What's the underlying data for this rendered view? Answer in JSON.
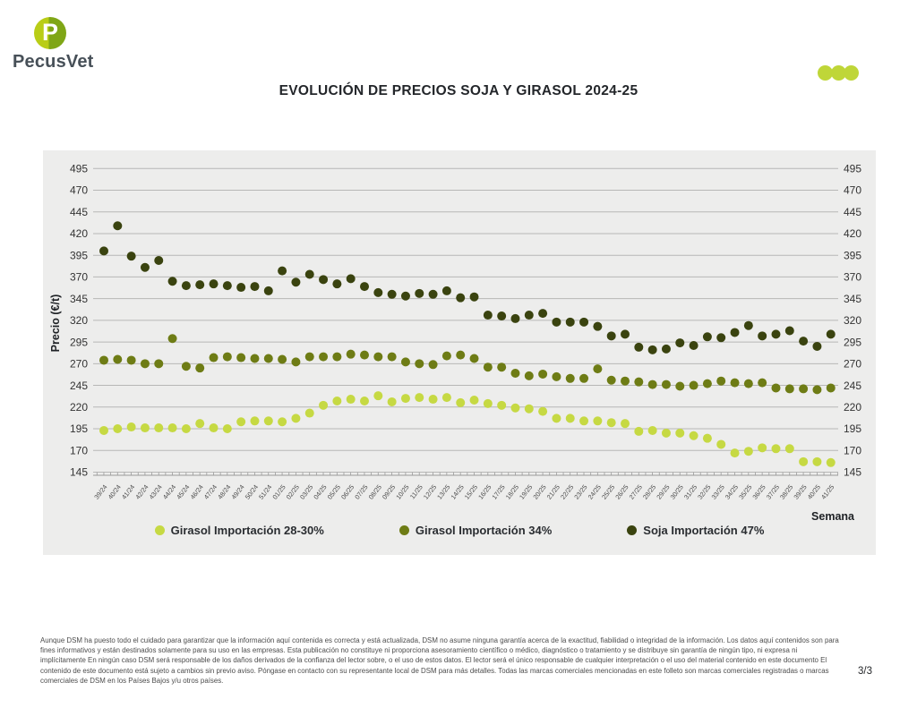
{
  "header": {
    "logo_text": "PecusVet",
    "logo_letter": "P",
    "title": "EVOLUCIÓN DE PRECIOS SOJA Y GIRASOL 2024-25"
  },
  "icons": {
    "logo": "pecusvet-circle-p-icon",
    "pager": "three-dots-icon"
  },
  "chart_data": {
    "type": "scatter",
    "title": "EVOLUCIÓN DE PRECIOS SOJA Y GIRASOL 2024-25",
    "xlabel": "Semana",
    "ylabel": "Precio (€/t)",
    "ylim": [
      145,
      495
    ],
    "ytick_step": 25,
    "grid": true,
    "legend_position": "bottom",
    "background": "#ededec",
    "x": [
      "39/24",
      "40/24",
      "41/24",
      "42/24",
      "43/24",
      "44/24",
      "45/24",
      "46/24",
      "47/24",
      "48/24",
      "49/24",
      "50/24",
      "51/24",
      "01/25",
      "02/25",
      "03/25",
      "04/25",
      "05/25",
      "06/25",
      "07/25",
      "08/25",
      "09/25",
      "10/25",
      "11/25",
      "12/25",
      "13/25",
      "14/25",
      "15/25",
      "16/25",
      "17/25",
      "18/25",
      "19/25",
      "20/25",
      "21/25",
      "22/25",
      "23/25",
      "24/25",
      "25/25",
      "26/25",
      "27/25",
      "28/25",
      "29/25",
      "30/25",
      "31/25",
      "32/25",
      "33/25",
      "34/25",
      "35/25",
      "36/25",
      "37/25",
      "38/25",
      "39/25",
      "40/25",
      "41/25"
    ],
    "series": [
      {
        "name": "Girasol Importación 28-30%",
        "color": "#c6d943",
        "values": [
          193,
          195,
          197,
          196,
          196,
          196,
          195,
          201,
          196,
          195,
          203,
          204,
          204,
          203,
          207,
          213,
          222,
          227,
          229,
          227,
          233,
          226,
          230,
          231,
          229,
          231,
          225,
          228,
          224,
          222,
          219,
          218,
          215,
          207,
          207,
          204,
          204,
          202,
          201,
          192,
          193,
          190,
          190,
          187,
          184,
          177,
          167,
          169,
          173,
          172,
          172,
          157,
          157,
          156
        ]
      },
      {
        "name": "Girasol Importación 34%",
        "color": "#6e7c15",
        "values": [
          274,
          275,
          274,
          270,
          270,
          299,
          267,
          265,
          277,
          278,
          277,
          276,
          276,
          275,
          272,
          278,
          278,
          278,
          281,
          280,
          278,
          278,
          272,
          270,
          269,
          279,
          280,
          276,
          266,
          266,
          259,
          256,
          258,
          255,
          253,
          253,
          264,
          251,
          250,
          249,
          246,
          246,
          244,
          245,
          247,
          250,
          248,
          247,
          248,
          242,
          241,
          241,
          240,
          242
        ]
      },
      {
        "name": "Soja Importación 47%",
        "color": "#3a430f",
        "values": [
          400,
          429,
          394,
          381,
          389,
          365,
          360,
          361,
          362,
          360,
          358,
          359,
          354,
          377,
          364,
          373,
          367,
          362,
          368,
          359,
          352,
          350,
          348,
          351,
          350,
          354,
          346,
          347,
          326,
          325,
          322,
          326,
          328,
          318,
          318,
          318,
          313,
          302,
          304,
          289,
          286,
          287,
          294,
          291,
          301,
          300,
          306,
          314,
          302,
          304,
          308,
          296,
          290,
          304
        ]
      }
    ]
  },
  "footer": {
    "disclaimer": "Aunque DSM ha puesto todo el cuidado para garantizar que la información aquí contenida es correcta y está actualizada, DSM no asume ninguna garantía acerca de la exactitud, fiabilidad o integridad de la información. Los datos aquí contenidos son para fines informativos y están destinados solamente para su uso en las empresas. Esta publicación no constituye ni proporciona asesoramiento científico o médico, diagnóstico o tratamiento y se distribuye sin garantía de ningún tipo, ni expresa ni implícitamente En ningún caso DSM será responsable de los daños derivados de la confianza del lector sobre, o el uso de estos datos. El lector será el único responsable de cualquier interpretación o el uso del material contenido en este documento El contenido de este documento está sujeto a cambios sin previo aviso. Póngase en contacto con su representante local de DSM para más detalles. Todas las marcas comerciales mencionadas en este folleto son marcas comerciales registradas o marcas comerciales de DSM en los Países Bajos y/u otros países.",
    "page": "3/3"
  }
}
